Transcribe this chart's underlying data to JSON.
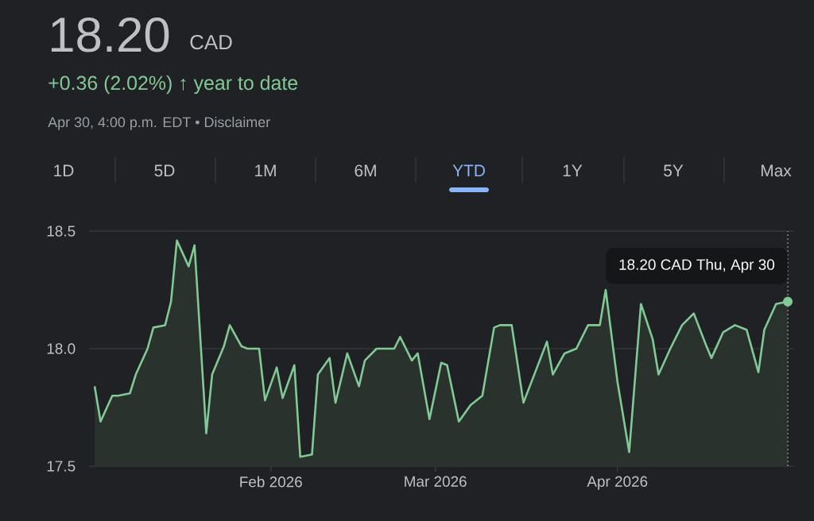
{
  "chart_data": {
    "type": "area",
    "title": "18.20",
    "color": "#81c995",
    "x": [
      "2026-01-02",
      "2026-01-03",
      "2026-01-05",
      "2026-01-06",
      "2026-01-08",
      "2026-01-09",
      "2026-01-11",
      "2026-01-12",
      "2026-01-14",
      "2026-01-15",
      "2026-01-16",
      "2026-01-18",
      "2026-01-19",
      "2026-01-21",
      "2026-01-22",
      "2026-01-24",
      "2026-01-25",
      "2026-01-27",
      "2026-01-28",
      "2026-01-30",
      "2026-01-31",
      "2026-02-02",
      "2026-02-03",
      "2026-02-05",
      "2026-02-06",
      "2026-02-08",
      "2026-02-09",
      "2026-02-11",
      "2026-02-12",
      "2026-02-14",
      "2026-02-16",
      "2026-02-17",
      "2026-02-19",
      "2026-02-20",
      "2026-02-22",
      "2026-02-23",
      "2026-02-25",
      "2026-02-26",
      "2026-02-28",
      "2026-03-02",
      "2026-03-03",
      "2026-03-05",
      "2026-03-07",
      "2026-03-09",
      "2026-03-11",
      "2026-03-12",
      "2026-03-14",
      "2026-03-16",
      "2026-03-18",
      "2026-03-20",
      "2026-03-21",
      "2026-03-23",
      "2026-03-25",
      "2026-03-27",
      "2026-03-29",
      "2026-03-30",
      "2026-04-01",
      "2026-04-03",
      "2026-04-05",
      "2026-04-07",
      "2026-04-08",
      "2026-04-10",
      "2026-04-12",
      "2026-04-14",
      "2026-04-16",
      "2026-04-17",
      "2026-04-19",
      "2026-04-21",
      "2026-04-23",
      "2026-04-25",
      "2026-04-26",
      "2026-04-28",
      "2026-04-30"
    ],
    "values": [
      17.84,
      17.69,
      17.8,
      17.8,
      17.81,
      17.89,
      18.0,
      18.09,
      18.1,
      18.2,
      18.46,
      18.35,
      18.44,
      17.64,
      17.89,
      18.01,
      18.1,
      18.01,
      18.0,
      18.0,
      17.78,
      17.92,
      17.79,
      17.93,
      17.54,
      17.55,
      17.89,
      17.96,
      17.77,
      17.98,
      17.84,
      17.95,
      18.0,
      18.0,
      18.0,
      18.05,
      17.95,
      17.98,
      17.7,
      17.94,
      17.93,
      17.69,
      17.76,
      17.8,
      18.09,
      18.1,
      18.1,
      17.77,
      17.9,
      18.03,
      17.89,
      17.98,
      18.0,
      18.1,
      18.1,
      18.25,
      17.86,
      17.56,
      18.19,
      18.04,
      17.89,
      18.0,
      18.1,
      18.15,
      18.02,
      17.96,
      18.07,
      18.1,
      18.08,
      17.9,
      18.08,
      18.19,
      18.2
    ],
    "xlim": [
      "2026-01-01",
      "2026-05-01"
    ],
    "xticks": [
      {
        "value": "2026-02-01",
        "label": "Feb 2026"
      },
      {
        "value": "2026-03-01",
        "label": "Mar 2026"
      },
      {
        "value": "2026-04-01",
        "label": "Apr 2026"
      }
    ],
    "ylim": [
      17.5,
      18.5
    ],
    "yticks": [
      17.5,
      {
        "value": 18,
        "label": "18.0"
      },
      18.5
    ],
    "grid": "y",
    "ref_lines": [
      {
        "axis": "x",
        "value": "2026-04-30",
        "line_style": "dotted",
        "color": "#9aa0a6"
      }
    ],
    "annotations": [
      "CAD",
      "+0.36 (2.02%) ↑ year to date",
      "Apr 30, 4:00 p.m. EDT • Disclaimer",
      "1D",
      "5D",
      "1M",
      "6M",
      "YTD",
      "1Y",
      "5Y",
      "Max",
      {
        "text": "18.20 CAD  Thu, Apr 30",
        "x": "2026-04-30",
        "y": 18.2
      }
    ]
  }
}
